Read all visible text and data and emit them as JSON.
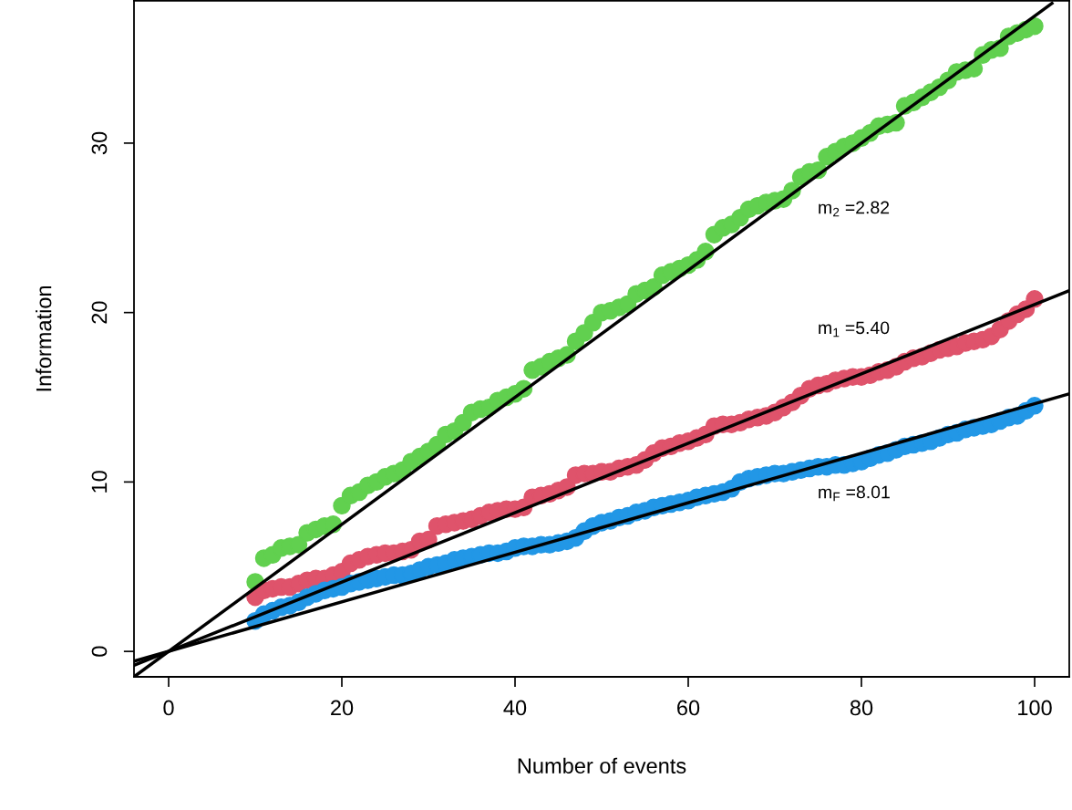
{
  "chart_data": {
    "type": "scatter",
    "xlabel": "Number of events",
    "ylabel": "Information",
    "xlim": [
      -4,
      104
    ],
    "ylim": [
      -1.5,
      38.4
    ],
    "xticks": [
      0,
      20,
      40,
      60,
      80,
      100
    ],
    "yticks": [
      0,
      10,
      20,
      30
    ],
    "grid": false,
    "legend": false,
    "marker": "circle",
    "x": [
      10,
      11,
      12,
      13,
      14,
      15,
      16,
      17,
      18,
      19,
      20,
      21,
      22,
      23,
      24,
      25,
      26,
      27,
      28,
      29,
      30,
      31,
      32,
      33,
      34,
      35,
      36,
      37,
      38,
      39,
      40,
      41,
      42,
      43,
      44,
      45,
      46,
      47,
      48,
      49,
      50,
      51,
      52,
      53,
      54,
      55,
      56,
      57,
      58,
      59,
      60,
      61,
      62,
      63,
      64,
      65,
      66,
      67,
      68,
      69,
      70,
      71,
      72,
      73,
      74,
      75,
      76,
      77,
      78,
      79,
      80,
      81,
      82,
      83,
      84,
      85,
      86,
      87,
      88,
      89,
      90,
      91,
      92,
      93,
      94,
      95,
      96,
      97,
      98,
      99,
      100
    ],
    "series": [
      {
        "color": "#61d04f",
        "values": [
          4.1,
          5.5,
          5.7,
          6.1,
          6.2,
          6.3,
          7.0,
          7.2,
          7.4,
          7.5,
          8.6,
          9.2,
          9.4,
          9.8,
          10.0,
          10.3,
          10.5,
          10.7,
          11.2,
          11.5,
          11.8,
          12.2,
          12.8,
          13.0,
          13.5,
          14.1,
          14.3,
          14.4,
          14.8,
          15.0,
          15.2,
          15.5,
          16.6,
          16.8,
          17.1,
          17.3,
          17.5,
          18.3,
          18.8,
          19.4,
          20.0,
          20.1,
          20.3,
          20.5,
          21.1,
          21.3,
          21.5,
          22.2,
          22.4,
          22.6,
          22.8,
          23.1,
          23.6,
          24.6,
          25.0,
          25.2,
          25.6,
          26.1,
          26.3,
          26.5,
          26.6,
          26.7,
          27.2,
          28.0,
          28.3,
          28.4,
          29.2,
          29.5,
          29.8,
          30.0,
          30.3,
          30.6,
          31.0,
          31.1,
          31.2,
          32.2,
          32.4,
          32.7,
          33.0,
          33.3,
          33.7,
          34.2,
          34.3,
          34.4,
          35.2,
          35.5,
          35.6,
          36.3,
          36.5,
          36.7,
          36.9
        ]
      },
      {
        "color": "#df536b",
        "values": [
          3.2,
          3.6,
          3.7,
          3.8,
          3.8,
          4.0,
          4.2,
          4.3,
          4.3,
          4.5,
          4.7,
          5.2,
          5.4,
          5.6,
          5.7,
          5.8,
          5.8,
          5.9,
          6.0,
          6.5,
          6.6,
          7.4,
          7.5,
          7.6,
          7.7,
          7.8,
          8.0,
          8.2,
          8.3,
          8.4,
          8.4,
          8.5,
          9.1,
          9.2,
          9.3,
          9.5,
          9.7,
          10.4,
          10.5,
          10.5,
          10.6,
          10.6,
          10.8,
          10.9,
          11.0,
          11.3,
          11.7,
          12.0,
          12.1,
          12.3,
          12.4,
          12.6,
          12.8,
          13.3,
          13.4,
          13.4,
          13.5,
          13.7,
          13.8,
          13.9,
          14.1,
          14.4,
          14.7,
          15.1,
          15.5,
          15.7,
          15.8,
          16.0,
          16.1,
          16.2,
          16.2,
          16.3,
          16.5,
          16.6,
          16.8,
          17.1,
          17.3,
          17.4,
          17.6,
          17.8,
          17.9,
          18.0,
          18.2,
          18.3,
          18.4,
          18.6,
          19.0,
          19.5,
          19.9,
          20.2,
          20.8
        ]
      },
      {
        "color": "#2297e6",
        "values": [
          1.8,
          2.2,
          2.4,
          2.6,
          2.7,
          2.9,
          3.2,
          3.4,
          3.6,
          3.7,
          3.8,
          4.0,
          4.1,
          4.2,
          4.3,
          4.4,
          4.5,
          4.5,
          4.6,
          4.8,
          5.0,
          5.1,
          5.2,
          5.4,
          5.5,
          5.6,
          5.7,
          5.8,
          5.8,
          5.9,
          6.1,
          6.2,
          6.2,
          6.3,
          6.3,
          6.4,
          6.5,
          6.7,
          7.1,
          7.4,
          7.6,
          7.7,
          7.9,
          8.0,
          8.2,
          8.3,
          8.5,
          8.6,
          8.7,
          8.8,
          8.9,
          9.1,
          9.2,
          9.3,
          9.4,
          9.6,
          10.0,
          10.2,
          10.3,
          10.4,
          10.5,
          10.5,
          10.6,
          10.7,
          10.8,
          10.9,
          10.9,
          11.0,
          11.0,
          11.1,
          11.2,
          11.4,
          11.6,
          11.7,
          11.9,
          12.1,
          12.2,
          12.3,
          12.4,
          12.6,
          12.8,
          12.9,
          13.1,
          13.2,
          13.3,
          13.4,
          13.6,
          13.8,
          13.9,
          14.2,
          14.5
        ]
      },
      {
        "type": "line",
        "marker": "none",
        "color": "#000000",
        "x": [
          -4,
          102
        ],
        "values": [
          -1.5,
          38.25
        ]
      },
      {
        "type": "line",
        "marker": "none",
        "color": "#000000",
        "x": [
          -4,
          104
        ],
        "values": [
          -0.82,
          21.3
        ]
      },
      {
        "type": "line",
        "marker": "none",
        "color": "#000000",
        "x": [
          -4,
          104
        ],
        "values": [
          -0.58,
          15.2
        ]
      }
    ],
    "annotations": [
      "m$_{2}$ =2.82",
      "m$_{1}$ =5.40",
      "m$_{F}$ =8.01"
    ]
  }
}
